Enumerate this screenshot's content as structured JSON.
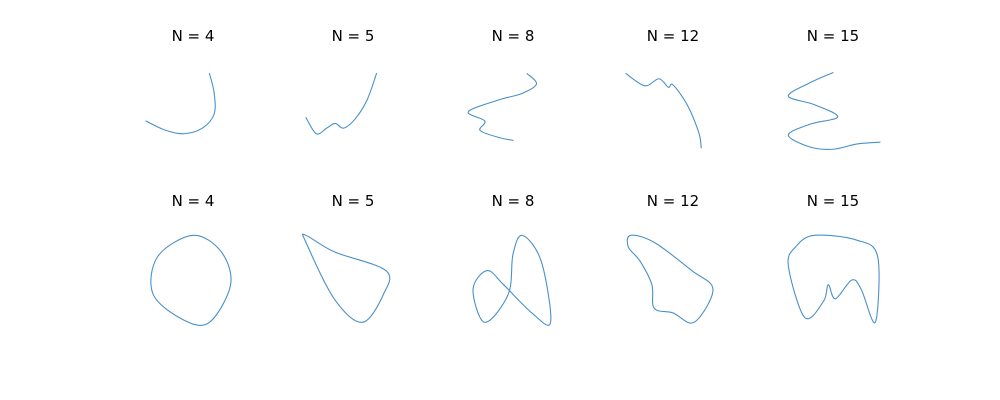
{
  "figure": {
    "curve_color": "#4a90c8",
    "background": "#ffffff"
  },
  "chart_data": [
    {
      "type": "line",
      "row": "open",
      "title": "N = 4",
      "axes": "off",
      "points": [
        [
          -1.0,
          -0.15
        ],
        [
          -0.6,
          -0.34
        ],
        [
          -0.2,
          -0.42
        ],
        [
          0.2,
          -0.3
        ],
        [
          0.45,
          0.0
        ],
        [
          0.45,
          0.45
        ],
        [
          0.35,
          0.86
        ]
      ]
    },
    {
      "type": "line",
      "row": "open",
      "title": "N = 5",
      "axes": "off",
      "points": [
        [
          -1.0,
          -0.08
        ],
        [
          -0.78,
          -0.42
        ],
        [
          -0.56,
          -0.3
        ],
        [
          -0.38,
          -0.2
        ],
        [
          -0.2,
          -0.3
        ],
        [
          0.05,
          -0.1
        ],
        [
          0.3,
          0.3
        ],
        [
          0.5,
          0.86
        ]
      ]
    },
    {
      "type": "line",
      "row": "open",
      "title": "N = 8",
      "axes": "off",
      "points": [
        [
          0.3,
          0.86
        ],
        [
          0.5,
          0.64
        ],
        [
          0.2,
          0.44
        ],
        [
          -0.3,
          0.3
        ],
        [
          -0.95,
          0.05
        ],
        [
          -0.6,
          -0.15
        ],
        [
          -0.7,
          -0.35
        ],
        [
          -0.3,
          -0.5
        ],
        [
          0.0,
          -0.56
        ]
      ]
    },
    {
      "type": "line",
      "row": "open",
      "title": "N = 12",
      "axes": "off",
      "points": [
        [
          -1.0,
          0.86
        ],
        [
          -0.6,
          0.6
        ],
        [
          -0.3,
          0.75
        ],
        [
          -0.1,
          0.57
        ],
        [
          0.0,
          0.62
        ],
        [
          0.3,
          0.2
        ],
        [
          0.55,
          -0.4
        ],
        [
          0.6,
          -0.72
        ]
      ]
    },
    {
      "type": "line",
      "row": "open",
      "title": "N = 15",
      "axes": "off",
      "points": [
        [
          0.0,
          0.88
        ],
        [
          -0.5,
          0.66
        ],
        [
          -0.95,
          0.38
        ],
        [
          -0.4,
          0.2
        ],
        [
          0.1,
          -0.06
        ],
        [
          -0.5,
          -0.22
        ],
        [
          -0.95,
          -0.45
        ],
        [
          -0.5,
          -0.7
        ],
        [
          0.0,
          -0.75
        ],
        [
          0.5,
          -0.64
        ],
        [
          1.0,
          -0.6
        ]
      ]
    },
    {
      "type": "line",
      "row": "closed",
      "title": "N = 4",
      "axes": "off",
      "points": [
        [
          0.0,
          0.95
        ],
        [
          0.6,
          0.6
        ],
        [
          0.8,
          -0.1
        ],
        [
          0.35,
          -0.9
        ],
        [
          -0.2,
          -0.85
        ],
        [
          -0.85,
          -0.3
        ],
        [
          -0.75,
          0.5
        ]
      ]
    },
    {
      "type": "line",
      "row": "closed",
      "title": "N = 5",
      "axes": "off",
      "points": [
        [
          -1.0,
          0.95
        ],
        [
          -0.4,
          0.6
        ],
        [
          0.7,
          0.2
        ],
        [
          0.65,
          -0.3
        ],
        [
          0.2,
          -0.9
        ],
        [
          -0.4,
          -0.4
        ],
        [
          -1.0,
          0.8
        ]
      ]
    },
    {
      "type": "line",
      "row": "closed",
      "title": "N = 8",
      "axes": "off",
      "points": [
        [
          0.2,
          0.95
        ],
        [
          0.6,
          0.4
        ],
        [
          0.8,
          -0.9
        ],
        [
          0.4,
          -0.7
        ],
        [
          -0.2,
          -0.1
        ],
        [
          -0.55,
          0.2
        ],
        [
          -0.85,
          -0.2
        ],
        [
          -0.6,
          -0.9
        ],
        [
          -0.1,
          -0.3
        ],
        [
          0.0,
          0.55
        ]
      ]
    },
    {
      "type": "line",
      "row": "closed",
      "title": "N = 12",
      "axes": "off",
      "points": [
        [
          -0.9,
          0.95
        ],
        [
          -0.4,
          0.8
        ],
        [
          0.4,
          0.2
        ],
        [
          0.85,
          -0.2
        ],
        [
          0.45,
          -0.9
        ],
        [
          0.0,
          -0.7
        ],
        [
          -0.4,
          -0.6
        ],
        [
          -0.45,
          -0.1
        ],
        [
          -0.7,
          0.4
        ],
        [
          -0.95,
          0.7
        ]
      ]
    },
    {
      "type": "line",
      "row": "closed",
      "title": "N = 15",
      "axes": "off",
      "points": [
        [
          -0.4,
          0.95
        ],
        [
          0.5,
          0.85
        ],
        [
          0.95,
          0.5
        ],
        [
          0.9,
          -0.9
        ],
        [
          0.6,
          -0.2
        ],
        [
          0.4,
          0.0
        ],
        [
          0.05,
          -0.4
        ],
        [
          -0.1,
          -0.1
        ],
        [
          -0.2,
          -0.45
        ],
        [
          -0.6,
          -0.8
        ],
        [
          -0.95,
          0.3
        ],
        [
          -0.8,
          0.7
        ]
      ]
    }
  ]
}
